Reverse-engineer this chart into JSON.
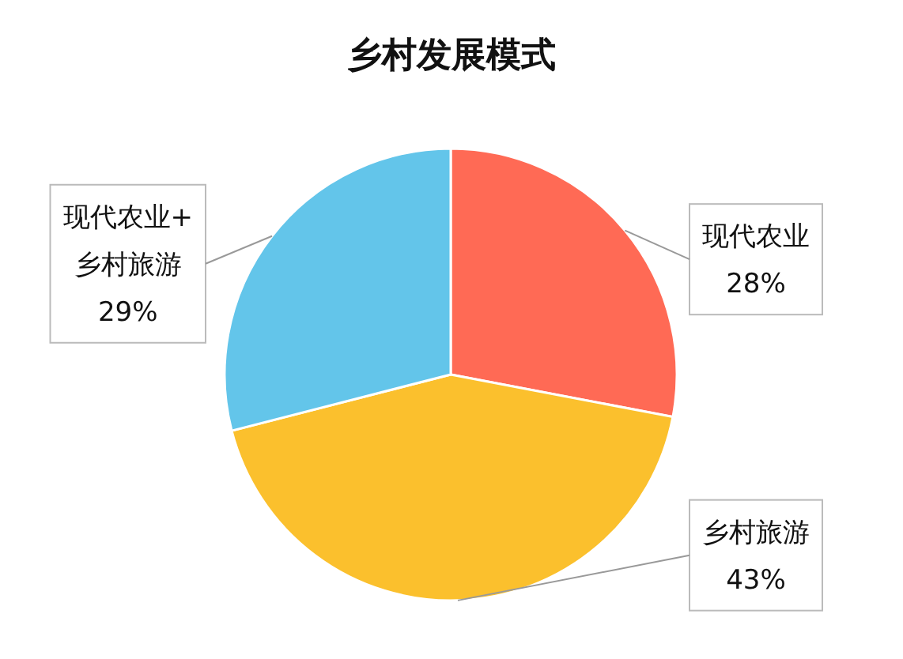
{
  "chart_data": {
    "type": "pie",
    "title": "乡村发展模式",
    "categories": [
      "现代农业",
      "乡村旅游",
      "现代农业+乡村旅游"
    ],
    "values": [
      28,
      43,
      29
    ],
    "colors": [
      "#ff6a55",
      "#fbc02d",
      "#63c5ea"
    ],
    "value_labels": [
      "28%",
      "43%",
      "29%"
    ]
  }
}
